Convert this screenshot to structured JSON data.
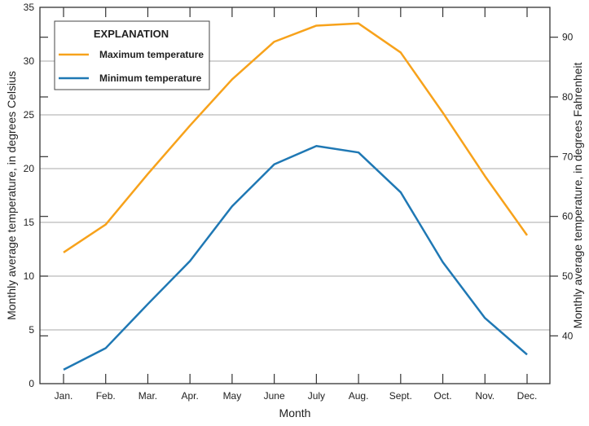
{
  "chart_data": {
    "type": "line",
    "title": "",
    "xlabel": "Month",
    "ylabel": "Monthly average temperature, in degrees Celsius",
    "ylabel_right": "Monthly average temperature, in degrees Fahrenheit",
    "categories": [
      "Jan.",
      "Feb.",
      "Mar.",
      "Apr.",
      "May",
      "June",
      "July",
      "Aug.",
      "Sept.",
      "Oct.",
      "Nov.",
      "Dec."
    ],
    "ylim": [
      0,
      35
    ],
    "yticks": [
      0,
      5,
      10,
      15,
      20,
      25,
      30,
      35
    ],
    "yticks_right": [
      40,
      50,
      60,
      70,
      80,
      90
    ],
    "grid": true,
    "legend": {
      "title": "EXPLANATION",
      "placement": "top-left"
    },
    "series": [
      {
        "name": "Maximum temperature",
        "color": "#F7A21B",
        "values": [
          12.2,
          14.8,
          19.5,
          24.0,
          28.3,
          31.8,
          33.3,
          33.5,
          30.8,
          25.2,
          19.3,
          13.8
        ]
      },
      {
        "name": "Minimum temperature",
        "color": "#1F78B4",
        "values": [
          1.3,
          3.3,
          7.4,
          11.4,
          16.5,
          20.4,
          22.1,
          21.5,
          17.8,
          11.3,
          6.1,
          2.7
        ]
      }
    ]
  }
}
